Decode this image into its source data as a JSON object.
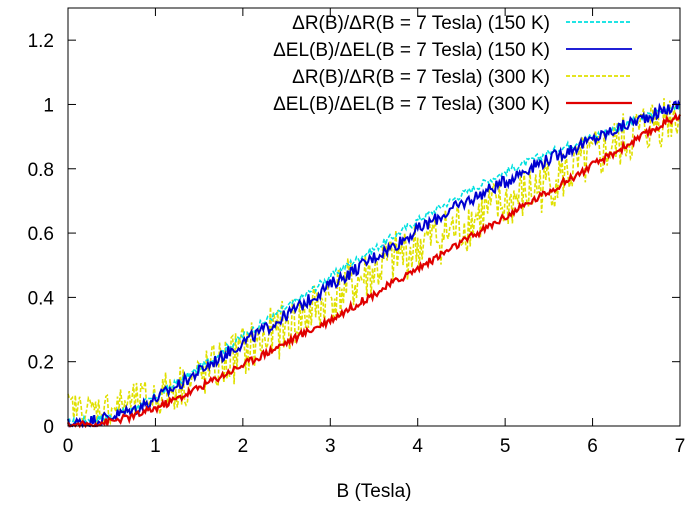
{
  "chart_data": {
    "type": "line",
    "title": "",
    "xlabel": "B (Tesla)",
    "ylabel": "",
    "xlim": [
      0,
      7
    ],
    "ylim": [
      0,
      1.3
    ],
    "x_ticks": [
      0,
      1,
      2,
      3,
      4,
      5,
      6,
      7
    ],
    "y_ticks": [
      0,
      0.2,
      0.4,
      0.6,
      0.8,
      1,
      1.2
    ],
    "x_tick_labels": [
      "0",
      "1",
      "2",
      "3",
      "4",
      "5",
      "6",
      "7"
    ],
    "y_tick_labels": [
      "0",
      "0.2",
      "0.4",
      "0.6",
      "0.8",
      "1",
      "1.2"
    ],
    "grid": false,
    "legend_position": "top-right",
    "series": [
      {
        "name": "ΔR(B)/ΔR(B = 7 Tesla) (150 K)",
        "color": "#00e0e0",
        "dash": "dashed",
        "x": [
          0,
          0.25,
          0.5,
          0.75,
          1,
          1.25,
          1.5,
          1.75,
          2,
          2.25,
          2.5,
          2.75,
          3,
          3.25,
          3.5,
          3.75,
          4,
          4.25,
          4.5,
          4.75,
          5,
          5.25,
          5.5,
          5.75,
          6,
          6.25,
          6.5,
          6.75,
          7
        ],
        "values": [
          0.01,
          0.02,
          0.03,
          0.055,
          0.09,
          0.135,
          0.18,
          0.23,
          0.28,
          0.325,
          0.37,
          0.415,
          0.465,
          0.51,
          0.55,
          0.595,
          0.64,
          0.68,
          0.72,
          0.755,
          0.79,
          0.82,
          0.85,
          0.875,
          0.9,
          0.925,
          0.95,
          0.975,
          1.0
        ]
      },
      {
        "name": "ΔEL(B)/ΔEL(B = 7 Tesla) (150 K)",
        "color": "#0000d0",
        "dash": "solid",
        "x": [
          0,
          0.25,
          0.5,
          0.75,
          1,
          1.25,
          1.5,
          1.75,
          2,
          2.25,
          2.5,
          2.75,
          3,
          3.25,
          3.5,
          3.75,
          4,
          4.25,
          4.5,
          4.75,
          5,
          5.25,
          5.5,
          5.75,
          6,
          6.25,
          6.5,
          6.75,
          7
        ],
        "values": [
          0.005,
          0.015,
          0.03,
          0.05,
          0.085,
          0.125,
          0.17,
          0.215,
          0.26,
          0.3,
          0.345,
          0.39,
          0.44,
          0.48,
          0.525,
          0.565,
          0.61,
          0.65,
          0.69,
          0.725,
          0.76,
          0.8,
          0.83,
          0.86,
          0.89,
          0.92,
          0.95,
          0.975,
          1.0
        ]
      },
      {
        "name": "ΔR(B)/ΔR(B = 7 Tesla) (300 K)",
        "color": "#e0e000",
        "dash": "dashed",
        "x": [
          0,
          0.25,
          0.5,
          0.75,
          1,
          1.25,
          1.5,
          1.75,
          2,
          2.25,
          2.5,
          2.75,
          3,
          3.25,
          3.5,
          3.75,
          4,
          4.25,
          4.5,
          4.75,
          5,
          5.25,
          5.5,
          5.75,
          6,
          6.25,
          6.5,
          6.75,
          7
        ],
        "values": [
          0.06,
          0.05,
          0.06,
          0.07,
          0.09,
          0.12,
          0.15,
          0.19,
          0.23,
          0.27,
          0.31,
          0.35,
          0.4,
          0.44,
          0.48,
          0.52,
          0.56,
          0.59,
          0.62,
          0.66,
          0.69,
          0.72,
          0.76,
          0.79,
          0.83,
          0.87,
          0.91,
          0.95,
          0.98
        ]
      },
      {
        "name": "ΔEL(B)/ΔEL(B = 7 Tesla) (300 K)",
        "color": "#e00000",
        "dash": "solid",
        "x": [
          0,
          0.25,
          0.5,
          0.75,
          1,
          1.25,
          1.5,
          1.75,
          2,
          2.25,
          2.5,
          2.75,
          3,
          3.25,
          3.5,
          3.75,
          4,
          4.25,
          4.5,
          4.75,
          5,
          5.25,
          5.5,
          5.75,
          6,
          6.25,
          6.5,
          6.75,
          7
        ],
        "values": [
          0.0,
          0.005,
          0.015,
          0.03,
          0.055,
          0.085,
          0.12,
          0.155,
          0.19,
          0.225,
          0.26,
          0.295,
          0.33,
          0.37,
          0.41,
          0.45,
          0.49,
          0.53,
          0.57,
          0.61,
          0.65,
          0.69,
          0.73,
          0.77,
          0.81,
          0.85,
          0.89,
          0.93,
          0.97
        ]
      }
    ]
  }
}
